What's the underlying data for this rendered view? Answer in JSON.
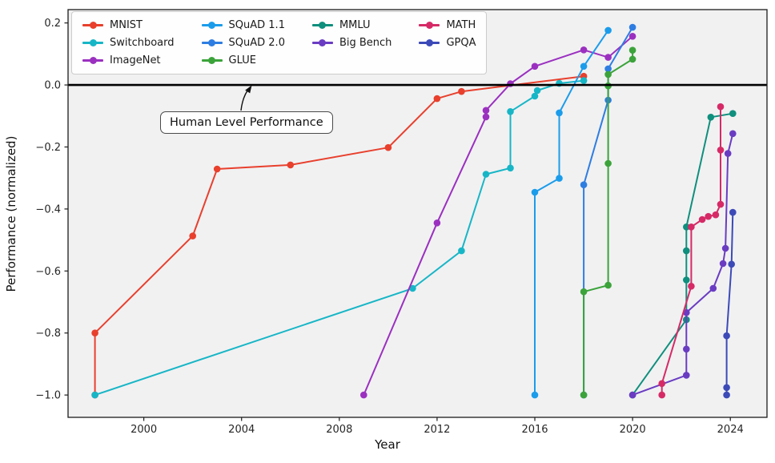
{
  "chart_data": {
    "type": "line",
    "xlabel": "Year",
    "ylabel": "Performance (normalized)",
    "xlim": [
      1996.9,
      2025.5
    ],
    "ylim": [
      -1.072,
      0.243
    ],
    "x_ticks": [
      2000,
      2004,
      2008,
      2012,
      2016,
      2020,
      2024
    ],
    "y_ticks": [
      0.2,
      0.0,
      -0.2,
      -0.4,
      -0.6,
      -0.8,
      -1.0
    ],
    "grid": false,
    "plot_background": "#f1f1f2",
    "human_level_line": {
      "value": 0,
      "color": "#000000"
    },
    "annotation": {
      "text": "Human Level Performance"
    },
    "legend": {
      "position": "upper left",
      "ncol": 4,
      "col_counts": [
        3,
        3,
        2,
        2
      ]
    },
    "series": [
      {
        "name": "MNIST",
        "color": "#e8402d",
        "points": [
          [
            1998,
            -1.0
          ],
          [
            1998,
            -0.8
          ],
          [
            2002,
            -0.487
          ],
          [
            2003,
            -0.271
          ],
          [
            2006,
            -0.258
          ],
          [
            2010,
            -0.202
          ],
          [
            2012,
            -0.044
          ],
          [
            2013,
            -0.021
          ],
          [
            2018,
            0.028
          ]
        ]
      },
      {
        "name": "Switchboard",
        "color": "#17b6c6",
        "points": [
          [
            1998,
            -1.0
          ],
          [
            2011,
            -0.656
          ],
          [
            2013,
            -0.535
          ],
          [
            2014,
            -0.288
          ],
          [
            2015,
            -0.268
          ],
          [
            2015,
            -0.086
          ],
          [
            2016,
            -0.036
          ],
          [
            2016.1,
            -0.018
          ],
          [
            2017,
            0.005
          ],
          [
            2018,
            0.014
          ]
        ]
      },
      {
        "name": "ImageNet",
        "color": "#9b30c0",
        "points": [
          [
            2009,
            -1.0
          ],
          [
            2012,
            -0.445
          ],
          [
            2014,
            -0.103
          ],
          [
            2014,
            -0.082
          ],
          [
            2015,
            0.004
          ],
          [
            2016,
            0.06
          ],
          [
            2018,
            0.113
          ],
          [
            2019,
            0.089
          ],
          [
            2020,
            0.157
          ]
        ]
      },
      {
        "name": "SQuAD 1.1",
        "color": "#1b9ceb",
        "points": [
          [
            2016,
            -1.0
          ],
          [
            2016,
            -0.346
          ],
          [
            2017,
            -0.301
          ],
          [
            2017,
            -0.09
          ],
          [
            2018,
            0.06
          ],
          [
            2019,
            0.176
          ]
        ]
      },
      {
        "name": "SQuAD 2.0",
        "color": "#2e7de2",
        "points": [
          [
            2018,
            -1.0
          ],
          [
            2018,
            -0.322
          ],
          [
            2019,
            -0.049
          ],
          [
            2019,
            0.052
          ],
          [
            2020,
            0.186
          ]
        ]
      },
      {
        "name": "GLUE",
        "color": "#3ba33a",
        "points": [
          [
            2018,
            -1.0
          ],
          [
            2018,
            -0.667
          ],
          [
            2019,
            -0.646
          ],
          [
            2019,
            -0.253
          ],
          [
            2019,
            -0.003
          ],
          [
            2019,
            0.034
          ],
          [
            2020,
            0.083
          ],
          [
            2020,
            0.112
          ]
        ]
      },
      {
        "name": "MMLU",
        "color": "#0f8f7d",
        "points": [
          [
            2020,
            -1.0
          ],
          [
            2022.2,
            -0.757
          ],
          [
            2022.2,
            -0.629
          ],
          [
            2022.2,
            -0.535
          ],
          [
            2022.2,
            -0.458
          ],
          [
            2023.2,
            -0.104
          ],
          [
            2024.1,
            -0.092
          ]
        ]
      },
      {
        "name": "Big Bench",
        "color": "#6a3cc2",
        "points": [
          [
            2020,
            -1.0
          ],
          [
            2022.2,
            -0.936
          ],
          [
            2022.2,
            -0.852
          ],
          [
            2022.2,
            -0.734
          ],
          [
            2023.3,
            -0.656
          ],
          [
            2023.7,
            -0.576
          ],
          [
            2023.8,
            -0.527
          ],
          [
            2023.9,
            -0.221
          ],
          [
            2024.1,
            -0.157
          ]
        ]
      },
      {
        "name": "MATH",
        "color": "#d62a66",
        "points": [
          [
            2021.2,
            -1.0
          ],
          [
            2021.2,
            -0.963
          ],
          [
            2022.4,
            -0.649
          ],
          [
            2022.4,
            -0.458
          ],
          [
            2022.85,
            -0.434
          ],
          [
            2023.1,
            -0.424
          ],
          [
            2023.4,
            -0.419
          ],
          [
            2023.6,
            -0.385
          ],
          [
            2023.6,
            -0.21
          ],
          [
            2023.6,
            -0.07
          ]
        ]
      },
      {
        "name": "GPQA",
        "color": "#3c4ab8",
        "points": [
          [
            2023.85,
            -1.0
          ],
          [
            2023.85,
            -0.976
          ],
          [
            2023.85,
            -0.809
          ],
          [
            2024.05,
            -0.578
          ],
          [
            2024.1,
            -0.411
          ]
        ]
      }
    ]
  }
}
